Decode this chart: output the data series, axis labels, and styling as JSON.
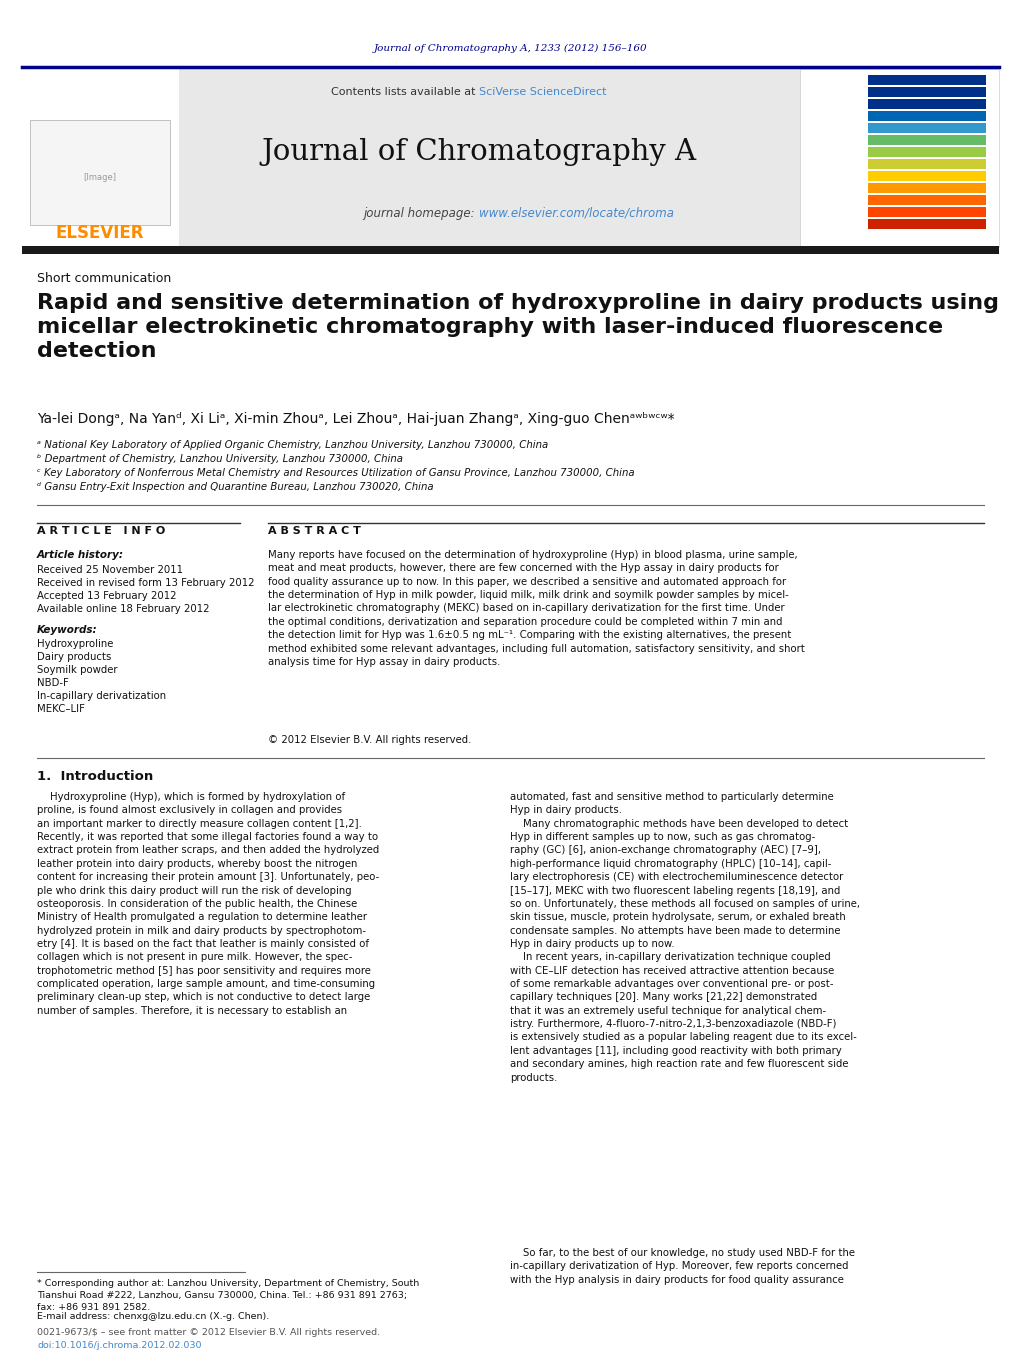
{
  "page_bg": "#ffffff",
  "top_journal_ref": "Journal of Chromatography A, 1233 (2012) 156–160",
  "top_journal_ref_color": "#00008B",
  "header_bg": "#e8e8e8",
  "header_journal_title": "Journal of Chromatography A",
  "header_contents_text": "Contents lists available at ",
  "header_sciverse": "SciVerse ScienceDirect",
  "header_homepage_text": "journal homepage: ",
  "header_url": "www.elsevier.com/locate/chroma",
  "elsevier_color": "#FF8C00",
  "divider_color": "#000080",
  "section_label": "Short communication",
  "article_title": "Rapid and sensitive determination of hydroxyproline in dairy products using\nmicellar electrokinetic chromatography with laser-induced fluorescence\ndetection",
  "authors": "Ya-lei Dongᵃ, Na Yanᵈ, Xi Liᵃ, Xi-min Zhouᵃ, Lei Zhouᵃ, Hai-juan Zhangᵃ, Xing-guo Chenᵃʷᵇʷᶜʷ*",
  "affil_a": "ᵃ National Key Laboratory of Applied Organic Chemistry, Lanzhou University, Lanzhou 730000, China",
  "affil_b": "ᵇ Department of Chemistry, Lanzhou University, Lanzhou 730000, China",
  "affil_c": "ᶜ Key Laboratory of Nonferrous Metal Chemistry and Resources Utilization of Gansu Province, Lanzhou 730000, China",
  "affil_d": "ᵈ Gansu Entry-Exit Inspection and Quarantine Bureau, Lanzhou 730020, China",
  "article_info_header": "A R T I C L E   I N F O",
  "abstract_header": "A B S T R A C T",
  "article_history_label": "Article history:",
  "received_line": "Received 25 November 2011",
  "received_revised": "Received in revised form 13 February 2012",
  "accepted_line": "Accepted 13 February 2012",
  "available_line": "Available online 18 February 2012",
  "keywords_label": "Keywords:",
  "keyword1": "Hydroxyproline",
  "keyword2": "Dairy products",
  "keyword3": "Soymilk powder",
  "keyword4": "NBD-F",
  "keyword5": "In-capillary derivatization",
  "keyword6": "MEKC–LIF",
  "abstract_text": "Many reports have focused on the determination of hydroxyproline (Hyp) in blood plasma, urine sample,\nmeat and meat products, however, there are few concerned with the Hyp assay in dairy products for\nfood quality assurance up to now. In this paper, we described a sensitive and automated approach for\nthe determination of Hyp in milk powder, liquid milk, milk drink and soymilk powder samples by micel-\nlar electrokinetic chromatography (MEKC) based on in-capillary derivatization for the first time. Under\nthe optimal conditions, derivatization and separation procedure could be completed within 7 min and\nthe detection limit for Hyp was 1.6±0.5 ng mL⁻¹. Comparing with the existing alternatives, the present\nmethod exhibited some relevant advantages, including full automation, satisfactory sensitivity, and short\nanalysis time for Hyp assay in dairy products.",
  "copyright_line": "© 2012 Elsevier B.V. All rights reserved.",
  "intro_header": "1.  Introduction",
  "intro_text1": "    Hydroxyproline (Hyp), which is formed by hydroxylation of\nproline, is found almost exclusively in collagen and provides\nan important marker to directly measure collagen content [1,2].\nRecently, it was reported that some illegal factories found a way to\nextract protein from leather scraps, and then added the hydrolyzed\nleather protein into dairy products, whereby boost the nitrogen\ncontent for increasing their protein amount [3]. Unfortunately, peo-\nple who drink this dairy product will run the risk of developing\nosteoporosis. In consideration of the public health, the Chinese\nMinistry of Health promulgated a regulation to determine leather\nhydrolyzed protein in milk and dairy products by spectrophotom-\netry [4]. It is based on the fact that leather is mainly consisted of\ncollagen which is not present in pure milk. However, the spec-\ntrophotometric method [5] has poor sensitivity and requires more\ncomplicated operation, large sample amount, and time-consuming\npreliminary clean-up step, which is not conductive to detect large\nnumber of samples. Therefore, it is necessary to establish an",
  "intro_text2": "automated, fast and sensitive method to particularly determine\nHyp in dairy products.\n    Many chromatographic methods have been developed to detect\nHyp in different samples up to now, such as gas chromatog-\nraphy (GC) [6], anion-exchange chromatography (AEC) [7–9],\nhigh-performance liquid chromatography (HPLC) [10–14], capil-\nlary electrophoresis (CE) with electrochemiluminescence detector\n[15–17], MEKC with two fluorescent labeling regents [18,19], and\nso on. Unfortunately, these methods all focused on samples of urine,\nskin tissue, muscle, protein hydrolysate, serum, or exhaled breath\ncondensate samples. No attempts have been made to determine\nHyp in dairy products up to now.\n    In recent years, in-capillary derivatization technique coupled\nwith CE–LIF detection has received attractive attention because\nof some remarkable advantages over conventional pre- or post-\ncapillary techniques [20]. Many works [21,22] demonstrated\nthat it was an extremely useful technique for analytical chem-\nistry. Furthermore, 4-fluoro-7-nitro-2,1,3-benzoxadiazole (NBD-F)\nis extensively studied as a popular labeling reagent due to its excel-\nlent advantages [11], including good reactivity with both primary\nand secondary amines, high reaction rate and few fluorescent side\nproducts.",
  "sofartext": "    So far, to the best of our knowledge, no study used NBD-F for the\nin-capillary derivatization of Hyp. Moreover, few reports concerned\nwith the Hyp analysis in dairy products for food quality assurance",
  "footnote_star": "* Corresponding author at: Lanzhou University, Department of Chemistry, South\nTianshui Road #222, Lanzhou, Gansu 730000, China. Tel.: +86 931 891 2763;\nfax: +86 931 891 2582.",
  "footnote_email": "E-mail address: chenxg@lzu.edu.cn (X.-g. Chen).",
  "footnote_issn": "0021-9673/$ – see front matter © 2012 Elsevier B.V. All rights reserved.",
  "footnote_doi": "doi:10.1016/j.chroma.2012.02.030",
  "stripe_colors": [
    "#003087",
    "#003087",
    "#003087",
    "#0066b3",
    "#3399cc",
    "#66bb66",
    "#99cc44",
    "#cccc33",
    "#ffcc00",
    "#ff9900",
    "#ff6600",
    "#ff4400",
    "#cc2200"
  ]
}
